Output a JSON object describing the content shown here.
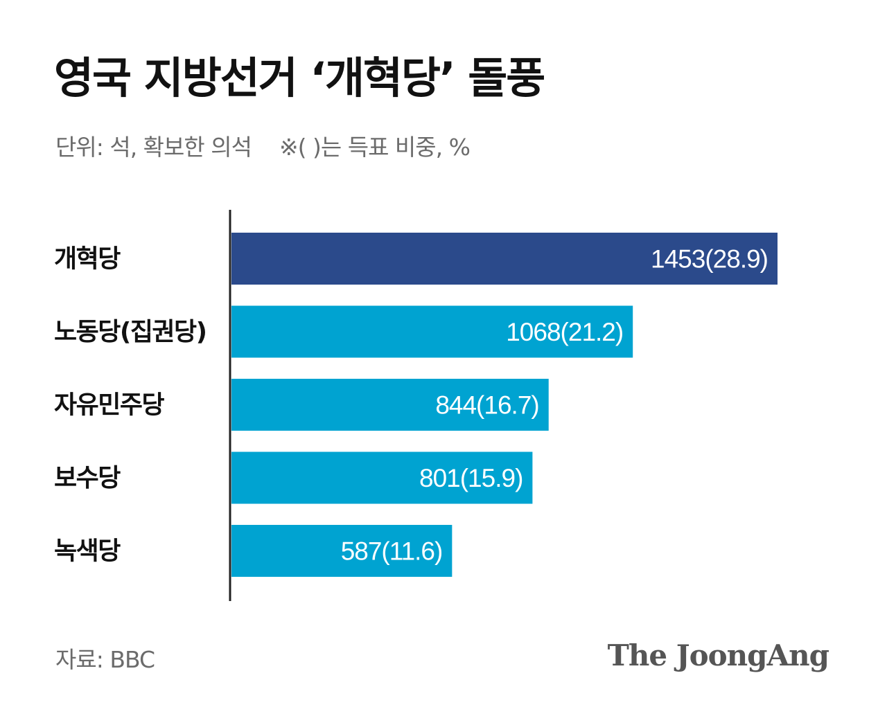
{
  "title": "영국 지방선거 ‘개혁당’ 돌풍",
  "subtitle": {
    "unit": "단위: 석, 확보한 의석",
    "note": "※( )는 득표 비중, %"
  },
  "source": "자료: BBC",
  "logo": "The JoongAng",
  "colors": {
    "highlight": "#2b4a8b",
    "bar": "#00a3d1",
    "axis": "#222222",
    "label_text": "#111111",
    "value_text": "#ffffff"
  },
  "chart_data": {
    "type": "bar",
    "orientation": "horizontal",
    "categories": [
      "개혁당",
      "노동당(집권당)",
      "자유민주당",
      "보수당",
      "녹색당"
    ],
    "values": [
      1453,
      1068,
      844,
      801,
      587
    ],
    "vote_share": [
      28.9,
      21.2,
      16.7,
      15.9,
      11.6
    ],
    "data_labels": [
      "1453(28.9)",
      "1068(21.2)",
      "844(16.7)",
      "801(15.9)",
      "587(11.6)"
    ],
    "highlight_index": 0,
    "xlim": [
      0,
      1453
    ],
    "grid": false,
    "legend": "none"
  }
}
